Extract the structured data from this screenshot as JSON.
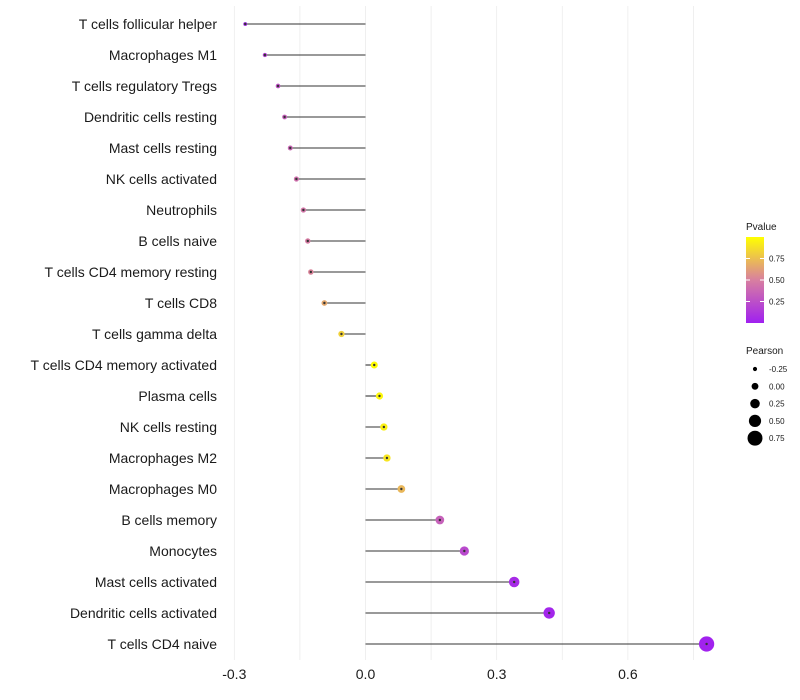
{
  "chart_data": {
    "type": "lollipop",
    "title": "",
    "xlabel": "",
    "ylabel": "",
    "xlim": [
      -0.3,
      0.78
    ],
    "x_ticks": [
      -0.3,
      0.0,
      0.3,
      0.6
    ],
    "x_tick_labels": [
      "-0.3",
      "0.0",
      "0.3",
      "0.6"
    ],
    "grid": true,
    "legend_position": "right",
    "categories": [
      "T cells follicular helper",
      "Macrophages M1",
      "T cells regulatory  Tregs",
      "Dendritic cells resting",
      "Mast cells resting",
      "NK cells activated",
      "Neutrophils",
      "B cells naive",
      "T cells CD4 memory resting",
      "T cells CD8",
      "T cells gamma delta",
      "T cells CD4 memory activated",
      "Plasma cells",
      "NK cells resting",
      "Macrophages M2",
      "Macrophages M0",
      "B cells memory",
      "Monocytes",
      "Mast cells activated",
      "Dendritic cells activated",
      "T cells CD4 naive"
    ],
    "pearson": [
      -0.275,
      -0.23,
      -0.2,
      -0.185,
      -0.172,
      -0.158,
      -0.142,
      -0.132,
      -0.125,
      -0.094,
      -0.055,
      0.02,
      0.032,
      0.042,
      0.049,
      0.082,
      0.17,
      0.226,
      0.34,
      0.42,
      0.78
    ],
    "pvalue": [
      0.03,
      0.18,
      0.27,
      0.33,
      0.37,
      0.42,
      0.45,
      0.48,
      0.52,
      0.66,
      0.82,
      0.99,
      0.97,
      0.94,
      0.9,
      0.72,
      0.34,
      0.22,
      0.06,
      0.03,
      0.01
    ],
    "color_legend": {
      "title": "Pvalue",
      "range": [
        0.0,
        1.0
      ],
      "ticks": [
        0.25,
        0.5,
        0.75
      ],
      "tick_labels": [
        "0.25",
        "0.50",
        "0.75"
      ],
      "low_color": "#a020f0",
      "mid_color": "#d87fa0",
      "high_color": "#ffff00"
    },
    "size_legend": {
      "title": "Pearson",
      "values": [
        -0.25,
        0.0,
        0.25,
        0.5,
        0.75
      ],
      "labels": [
        "-0.25",
        "0.00",
        "0.25",
        "0.50",
        "0.75"
      ]
    }
  }
}
